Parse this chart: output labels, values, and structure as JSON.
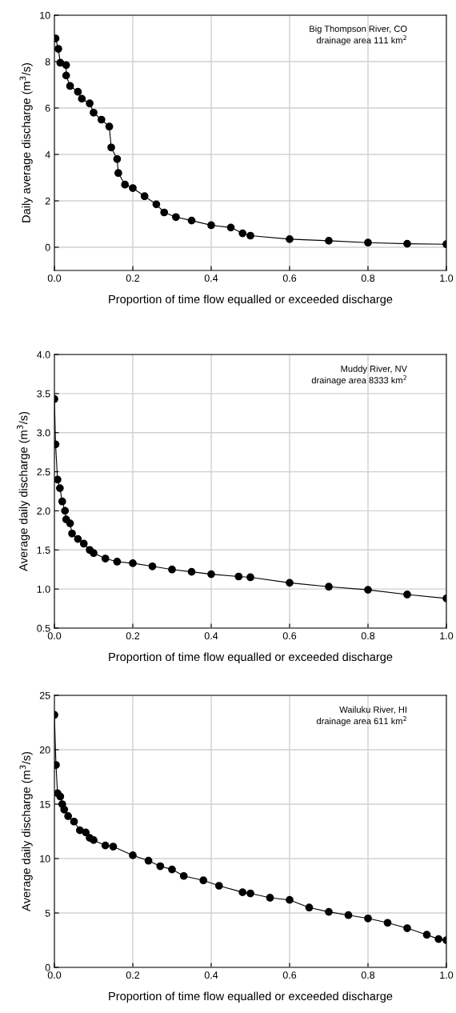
{
  "chart_data": [
    {
      "type": "line",
      "xlabel": "Proportion of time flow equalled or exceeded discharge",
      "ylabel": "Daily average discharge (m$^{3}$/s)",
      "annotations": [
        "Big Thompson River, CO\ndrainage area 111 km$^{2}$"
      ],
      "marker": "circle",
      "line_style": "solid",
      "grid": true,
      "legend": false,
      "xlim": [
        0,
        1
      ],
      "xticks": [
        {
          "value": 0,
          "label": "0.0"
        },
        {
          "value": 0.2,
          "label": "0.2"
        },
        {
          "value": 0.4,
          "label": "0.4"
        },
        {
          "value": 0.6,
          "label": "0.6"
        },
        {
          "value": 0.8,
          "label": "0.8"
        },
        {
          "value": 1,
          "label": "1.0"
        }
      ],
      "ylim": [
        -1,
        10
      ],
      "yticks": [
        0,
        2,
        4,
        6,
        8,
        10
      ],
      "series": [
        {
          "color": "#000000",
          "x": [
            0.003,
            0.01,
            0.015,
            0.03,
            0.03,
            0.04,
            0.06,
            0.07,
            0.09,
            0.1,
            0.12,
            0.14,
            0.145,
            0.16,
            0.163,
            0.18,
            0.2,
            0.23,
            0.26,
            0.28,
            0.31,
            0.35,
            0.4,
            0.45,
            0.48,
            0.5,
            0.6,
            0.7,
            0.8,
            0.9,
            1.0
          ],
          "values": [
            9.0,
            8.55,
            7.95,
            7.85,
            7.4,
            6.95,
            6.7,
            6.4,
            6.2,
            5.8,
            5.5,
            5.2,
            4.3,
            3.8,
            3.2,
            2.7,
            2.55,
            2.2,
            1.85,
            1.5,
            1.3,
            1.15,
            0.95,
            0.85,
            0.6,
            0.5,
            0.35,
            0.28,
            0.2,
            0.15,
            0.13
          ]
        }
      ]
    },
    {
      "type": "line",
      "xlabel": "Proportion of time flow equalled or exceeded discharge",
      "ylabel": "Average daily discharge (m$^{3}$/s)",
      "annotations": [
        "Muddy River, NV\ndrainage area 8333 km$^{2}$"
      ],
      "marker": "circle",
      "line_style": "solid",
      "grid": true,
      "legend": false,
      "xlim": [
        0,
        1
      ],
      "xticks": [
        {
          "value": 0,
          "label": "0.0"
        },
        {
          "value": 0.2,
          "label": "0.2"
        },
        {
          "value": 0.4,
          "label": "0.4"
        },
        {
          "value": 0.6,
          "label": "0.6"
        },
        {
          "value": 0.8,
          "label": "0.8"
        },
        {
          "value": 1,
          "label": "1.0"
        }
      ],
      "ylim": [
        0.5,
        4
      ],
      "yticks": [
        {
          "value": 0.5,
          "label": "0.5"
        },
        {
          "value": 1,
          "label": "1.0"
        },
        {
          "value": 1.5,
          "label": "1.5"
        },
        {
          "value": 2,
          "label": "2.0"
        },
        {
          "value": 2.5,
          "label": "2.5"
        },
        {
          "value": 3,
          "label": "3.0"
        },
        {
          "value": 3.5,
          "label": "3.5"
        },
        {
          "value": 4,
          "label": "4.0"
        }
      ],
      "series": [
        {
          "color": "#000000",
          "x": [
            0.0,
            0.003,
            0.008,
            0.014,
            0.02,
            0.027,
            0.03,
            0.04,
            0.045,
            0.06,
            0.075,
            0.09,
            0.1,
            0.13,
            0.16,
            0.2,
            0.25,
            0.3,
            0.35,
            0.4,
            0.47,
            0.5,
            0.6,
            0.7,
            0.8,
            0.9,
            1.0
          ],
          "values": [
            3.43,
            2.85,
            2.4,
            2.29,
            2.12,
            2.0,
            1.89,
            1.84,
            1.71,
            1.64,
            1.58,
            1.5,
            1.46,
            1.39,
            1.35,
            1.33,
            1.29,
            1.25,
            1.22,
            1.19,
            1.16,
            1.15,
            1.08,
            1.03,
            0.99,
            0.93,
            0.88
          ]
        }
      ]
    },
    {
      "type": "line",
      "xlabel": "Proportion of time flow equalled or exceeded discharge",
      "ylabel": "Average daily discharge (m$^{3}$/s)",
      "annotations": [
        "Wailuku River, HI\ndrainage area 611 km$^{2}$"
      ],
      "marker": "circle",
      "line_style": "solid",
      "grid": true,
      "legend": false,
      "xlim": [
        0,
        1
      ],
      "xticks": [
        {
          "value": 0,
          "label": "0.0"
        },
        {
          "value": 0.2,
          "label": "0.2"
        },
        {
          "value": 0.4,
          "label": "0.4"
        },
        {
          "value": 0.6,
          "label": "0.6"
        },
        {
          "value": 0.8,
          "label": "0.8"
        },
        {
          "value": 1,
          "label": "1.0"
        }
      ],
      "ylim": [
        0,
        25
      ],
      "yticks": [
        0,
        5,
        10,
        15,
        20,
        25
      ],
      "series": [
        {
          "color": "#000000",
          "x": [
            0.0,
            0.004,
            0.008,
            0.015,
            0.02,
            0.025,
            0.035,
            0.05,
            0.065,
            0.08,
            0.09,
            0.1,
            0.13,
            0.15,
            0.2,
            0.24,
            0.27,
            0.3,
            0.33,
            0.38,
            0.42,
            0.48,
            0.5,
            0.55,
            0.6,
            0.65,
            0.7,
            0.75,
            0.8,
            0.85,
            0.9,
            0.95,
            0.98,
            1.0
          ],
          "values": [
            23.2,
            18.6,
            16.0,
            15.7,
            15.0,
            14.5,
            13.9,
            13.4,
            12.6,
            12.4,
            11.9,
            11.7,
            11.2,
            11.1,
            10.3,
            9.8,
            9.3,
            9.0,
            8.4,
            8.0,
            7.5,
            6.9,
            6.8,
            6.4,
            6.2,
            5.5,
            5.1,
            4.8,
            4.5,
            4.1,
            3.6,
            3.0,
            2.6,
            2.5
          ]
        }
      ]
    }
  ]
}
